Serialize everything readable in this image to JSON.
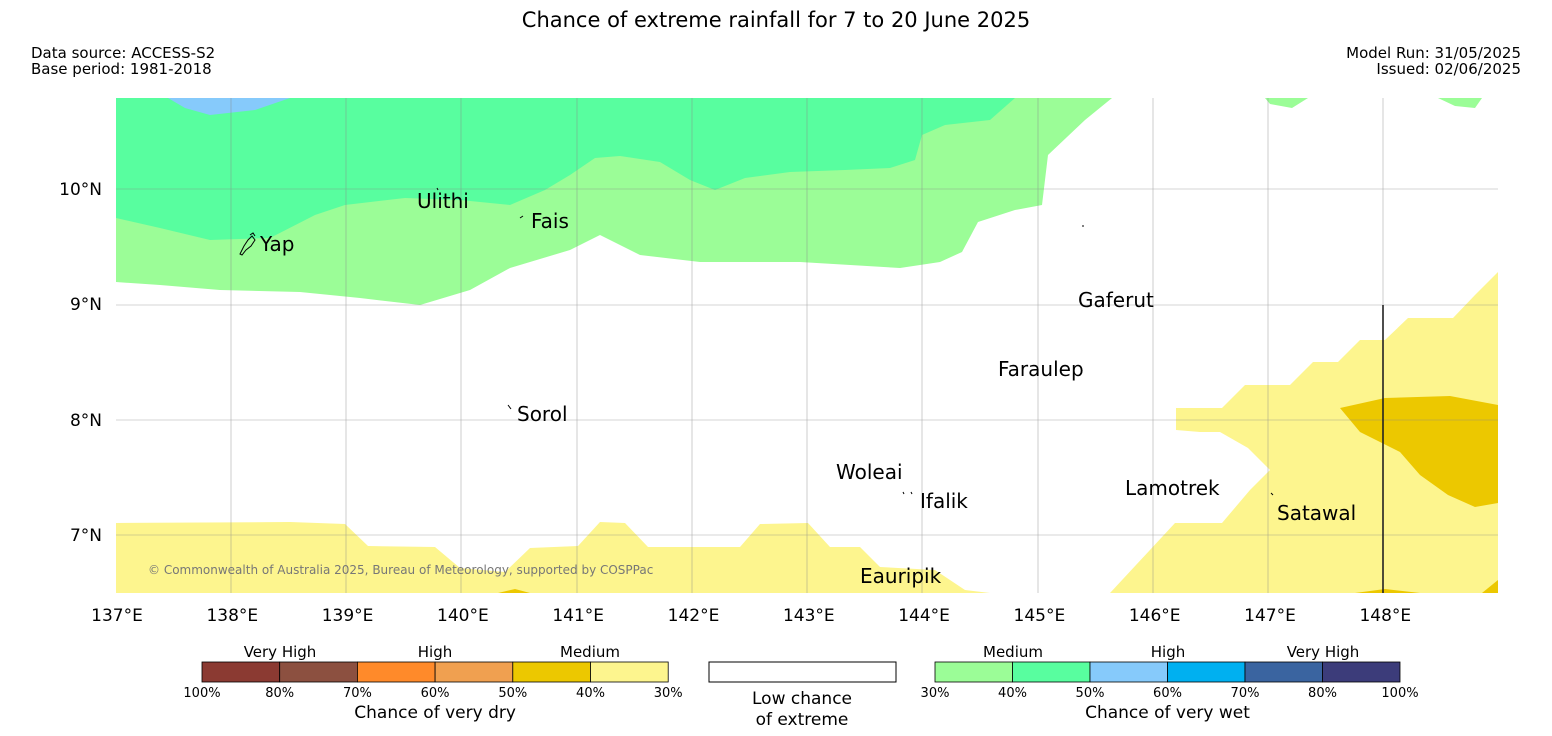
{
  "title": "Chance of extreme rainfall for 7 to 20 June 2025",
  "meta": {
    "data_source": "Data source: ACCESS-S2",
    "base_period": "Base period: 1981-2018",
    "model_run": "Model Run: 31/05/2025",
    "issued": "Issued: 02/06/2025"
  },
  "copyright": "© Commonwealth of Australia 2025, Bureau of Meteorology, supported by COSPPac",
  "lat_ticks": [
    "10°N",
    "9°N",
    "8°N",
    "7°N"
  ],
  "lon_ticks": [
    "137°E",
    "138°E",
    "139°E",
    "140°E",
    "141°E",
    "142°E",
    "143°E",
    "144°E",
    "145°E",
    "146°E",
    "147°E",
    "148°E"
  ],
  "places": [
    "Ulithi",
    "Fais",
    "Yap",
    "Gaferut",
    "Faraulep",
    "Sorol",
    "Woleai",
    "Ifalik",
    "Lamotrek",
    "Satawal",
    "Eauripik"
  ],
  "colors": {
    "dry_100_80": "#8b3a32",
    "dry_80_70": "#8c5040",
    "dry_70_60": "#ff8a2a",
    "dry_60_50": "#f0a050",
    "dry_50_40": "#ecc800",
    "dry_40_30": "#fdf58e",
    "wet_30_40": "#9bfd97",
    "wet_40_50": "#58fe9f",
    "wet_50_60": "#86cafb",
    "wet_60_70": "#00b0f0",
    "wet_70_80": "#3a64a0",
    "wet_80_100": "#3c3c7a"
  },
  "legend": {
    "dry": {
      "title": "Chance of very dry",
      "groups": [
        "Very High",
        "High",
        "Medium"
      ],
      "ticks": [
        "100%",
        "80%",
        "70%",
        "60%",
        "50%",
        "40%",
        "30%"
      ]
    },
    "neutral": {
      "line1": "Low chance",
      "line2": "of extreme"
    },
    "wet": {
      "title": "Chance of very wet",
      "groups": [
        "Medium",
        "High",
        "Very High"
      ],
      "ticks": [
        "30%",
        "40%",
        "50%",
        "60%",
        "70%",
        "80%",
        "100%"
      ]
    }
  }
}
